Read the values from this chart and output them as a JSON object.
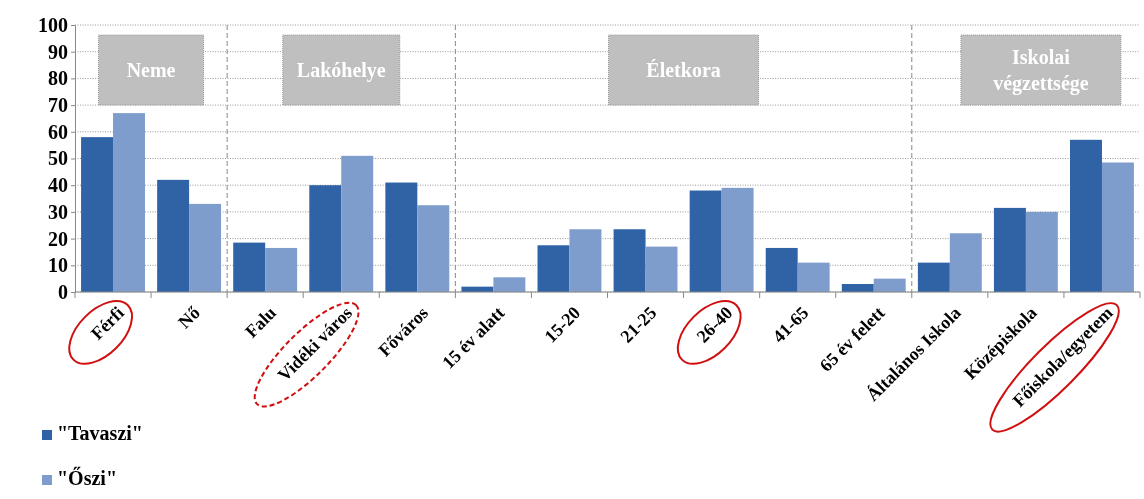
{
  "chart_data": {
    "type": "bar",
    "categories": [
      "Férfi",
      "Nő",
      "Falu",
      "Vidéki város",
      "Főváros",
      "15 év alatt",
      "15-20",
      "21-25",
      "26-40",
      "41-65",
      "65 év felett",
      "Általános Iskola",
      "Középiskola",
      "Főiskola/egyetem"
    ],
    "series": [
      {
        "name": "\"Tavaszi\"",
        "color": "#2f63a6",
        "values": [
          58,
          42,
          18.5,
          40,
          41,
          2,
          17.5,
          23.5,
          38,
          16.5,
          3,
          11,
          31.5,
          57
        ]
      },
      {
        "name": "\"Őszi\"",
        "color": "#7f9dcc",
        "values": [
          67,
          33,
          16.5,
          51,
          32.5,
          5.5,
          23.5,
          17,
          39,
          11,
          5,
          22,
          30,
          48.5
        ]
      }
    ],
    "ylim": [
      0,
      100
    ],
    "yticks": [
      0,
      10,
      20,
      30,
      40,
      50,
      60,
      70,
      80,
      90,
      100
    ],
    "grid": "y",
    "legend": "bottom left",
    "annotations": [
      "Neme",
      "Lakóhelye",
      "Életkora",
      "Iskolai\nvégzettsége"
    ]
  }
}
